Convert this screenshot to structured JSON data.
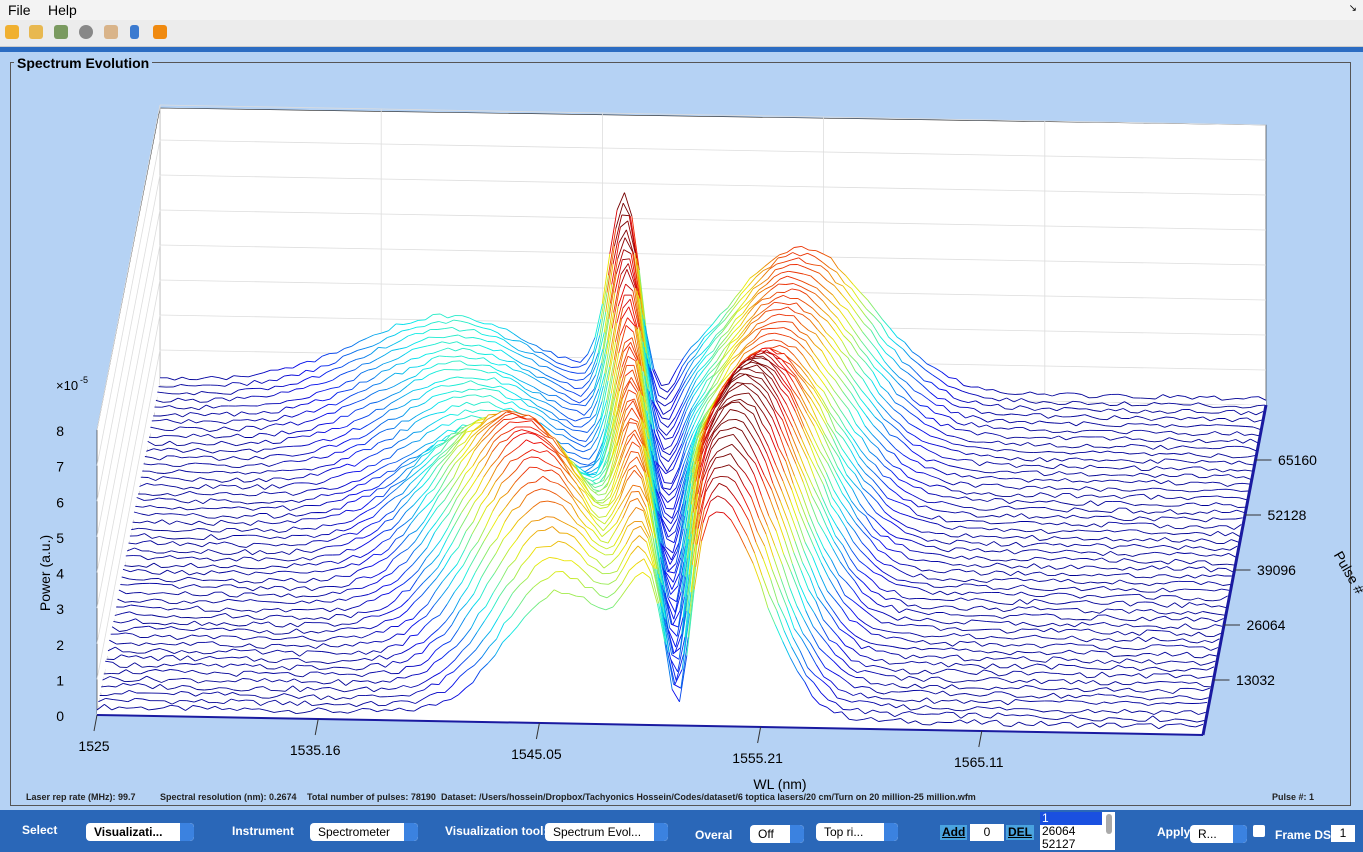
{
  "menu": [
    "File",
    "Help"
  ],
  "panel_title": "Spectrum Evolution",
  "plot": {
    "multiplier": "×10",
    "multiplier_exponent": "-5",
    "z_label": "Power (a.u.)",
    "z_ticks": [
      "0",
      "1",
      "2",
      "3",
      "4",
      "5",
      "6",
      "7",
      "8"
    ],
    "x_label": "WL (nm)",
    "x_ticks": [
      "1525",
      "1535.16",
      "1545.05",
      "1555.21",
      "1565.11"
    ],
    "y_label": "Pulse #",
    "y_ticks": [
      "13032",
      "26064",
      "39096",
      "52128",
      "65160"
    ]
  },
  "status": {
    "rep_rate": "Laser rep rate (MHz): 99.7",
    "resolution": "Spectral resolution (nm): 0.2674",
    "pulses": "Total number of pulses: 78190",
    "dataset": "Dataset:  /Users/hossein/Dropbox/Tachyonics Hossein/Codes/dataset/6 toptica lasers/20 cm/Turn on 20 million-25 million.wfm",
    "pulse_no": "Pulse #: 1"
  },
  "controls": {
    "select_label": "Select",
    "select_value": "Visualizati...",
    "instrument_label": "Instrument",
    "instrument_value": "Spectrometer",
    "tool_label": "Visualization tool:",
    "tool_value": "Spectrum Evol...",
    "overal_label": "Overal",
    "overal_value": "Off",
    "position_value": "Top ri...",
    "add": "Add",
    "add_value": "0",
    "del": "DEL",
    "list": [
      "1",
      "26064",
      "52127"
    ],
    "apply_label": "Apply",
    "apply_value": "R...",
    "frame_label": "Frame DS:",
    "frame_value": "1"
  }
}
